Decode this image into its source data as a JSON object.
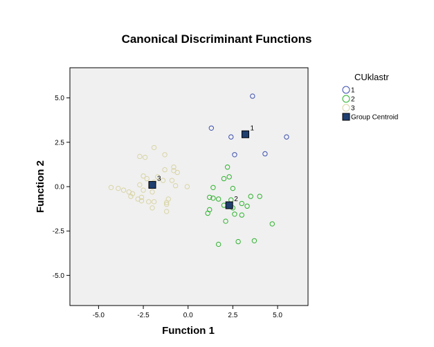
{
  "chart_data": {
    "type": "scatter",
    "title": "Canonical Discriminant Functions",
    "xlabel": "Function 1",
    "ylabel": "Function 2",
    "xlim": [
      -6.6,
      6.7
    ],
    "ylim": [
      -6.7,
      6.7
    ],
    "xticks": [
      -5.0,
      -2.5,
      0.0,
      2.5,
      5.0
    ],
    "yticks": [
      5.0,
      2.5,
      0.0,
      -2.5,
      -5.0
    ],
    "xtick_labels": [
      "-5.0",
      "-2.5",
      "0.0",
      "2.5",
      "5.0"
    ],
    "ytick_labels": [
      "5.0",
      "2.5",
      "0.0",
      "-2.5",
      "-5.0"
    ],
    "legend": {
      "title": "CUklastr",
      "position": "right",
      "entries": [
        {
          "label": "1",
          "marker": "circle",
          "color": "#3b4fae"
        },
        {
          "label": "2",
          "marker": "circle",
          "color": "#2db22d"
        },
        {
          "label": "3",
          "marker": "circle",
          "color": "#d8d4a4"
        },
        {
          "label": "Group Centroid",
          "marker": "square",
          "color": "#1f3f6f"
        }
      ]
    },
    "series": [
      {
        "name": "1",
        "color": "#3b4fae",
        "points": [
          [
            3.6,
            5.1
          ],
          [
            1.3,
            3.3
          ],
          [
            2.4,
            2.8
          ],
          [
            5.5,
            2.8
          ],
          [
            4.3,
            1.85
          ],
          [
            2.6,
            1.8
          ]
        ]
      },
      {
        "name": "2",
        "color": "#2db22d",
        "points": [
          [
            2.2,
            1.1
          ],
          [
            2.3,
            0.55
          ],
          [
            2.0,
            0.45
          ],
          [
            1.4,
            -0.05
          ],
          [
            2.5,
            -0.1
          ],
          [
            3.5,
            -0.55
          ],
          [
            4.0,
            -0.55
          ],
          [
            1.2,
            -0.6
          ],
          [
            1.4,
            -0.65
          ],
          [
            1.7,
            -0.7
          ],
          [
            2.4,
            -0.75
          ],
          [
            3.0,
            -0.95
          ],
          [
            2.0,
            -1.05
          ],
          [
            2.5,
            -1.2
          ],
          [
            3.3,
            -1.1
          ],
          [
            1.2,
            -1.3
          ],
          [
            1.1,
            -1.5
          ],
          [
            2.6,
            -1.55
          ],
          [
            3.0,
            -1.6
          ],
          [
            2.1,
            -1.95
          ],
          [
            4.7,
            -2.1
          ],
          [
            2.8,
            -3.1
          ],
          [
            3.7,
            -3.05
          ],
          [
            1.7,
            -3.25
          ]
        ]
      },
      {
        "name": "3",
        "color": "#d8d4a4",
        "points": [
          [
            -1.9,
            2.2
          ],
          [
            -1.3,
            1.8
          ],
          [
            -2.7,
            1.7
          ],
          [
            -2.4,
            1.65
          ],
          [
            -0.8,
            1.1
          ],
          [
            -1.3,
            0.95
          ],
          [
            -0.8,
            0.9
          ],
          [
            -0.6,
            0.8
          ],
          [
            -2.5,
            0.6
          ],
          [
            -1.7,
            0.55
          ],
          [
            -2.3,
            0.45
          ],
          [
            -1.4,
            0.35
          ],
          [
            -0.9,
            0.35
          ],
          [
            -1.9,
            0.25
          ],
          [
            -2.7,
            0.1
          ],
          [
            -0.7,
            0.05
          ],
          [
            -0.05,
            0.0
          ],
          [
            -4.3,
            -0.05
          ],
          [
            -3.9,
            -0.1
          ],
          [
            -3.6,
            -0.2
          ],
          [
            -2.5,
            -0.2
          ],
          [
            -3.3,
            -0.3
          ],
          [
            -2.0,
            -0.3
          ],
          [
            -3.1,
            -0.4
          ],
          [
            -3.2,
            -0.55
          ],
          [
            -2.6,
            -0.6
          ],
          [
            -2.8,
            -0.7
          ],
          [
            -1.1,
            -0.7
          ],
          [
            -2.6,
            -0.8
          ],
          [
            -2.2,
            -0.85
          ],
          [
            -1.9,
            -0.85
          ],
          [
            -1.2,
            -0.9
          ],
          [
            -1.2,
            -1.0
          ],
          [
            -2.0,
            -1.2
          ],
          [
            -1.2,
            -1.4
          ]
        ]
      }
    ],
    "centroids": [
      {
        "label": "1",
        "x": 3.2,
        "y": 2.95
      },
      {
        "label": "2",
        "x": 2.3,
        "y": -1.05
      },
      {
        "label": "3",
        "x": -2.0,
        "y": 0.1
      }
    ]
  }
}
